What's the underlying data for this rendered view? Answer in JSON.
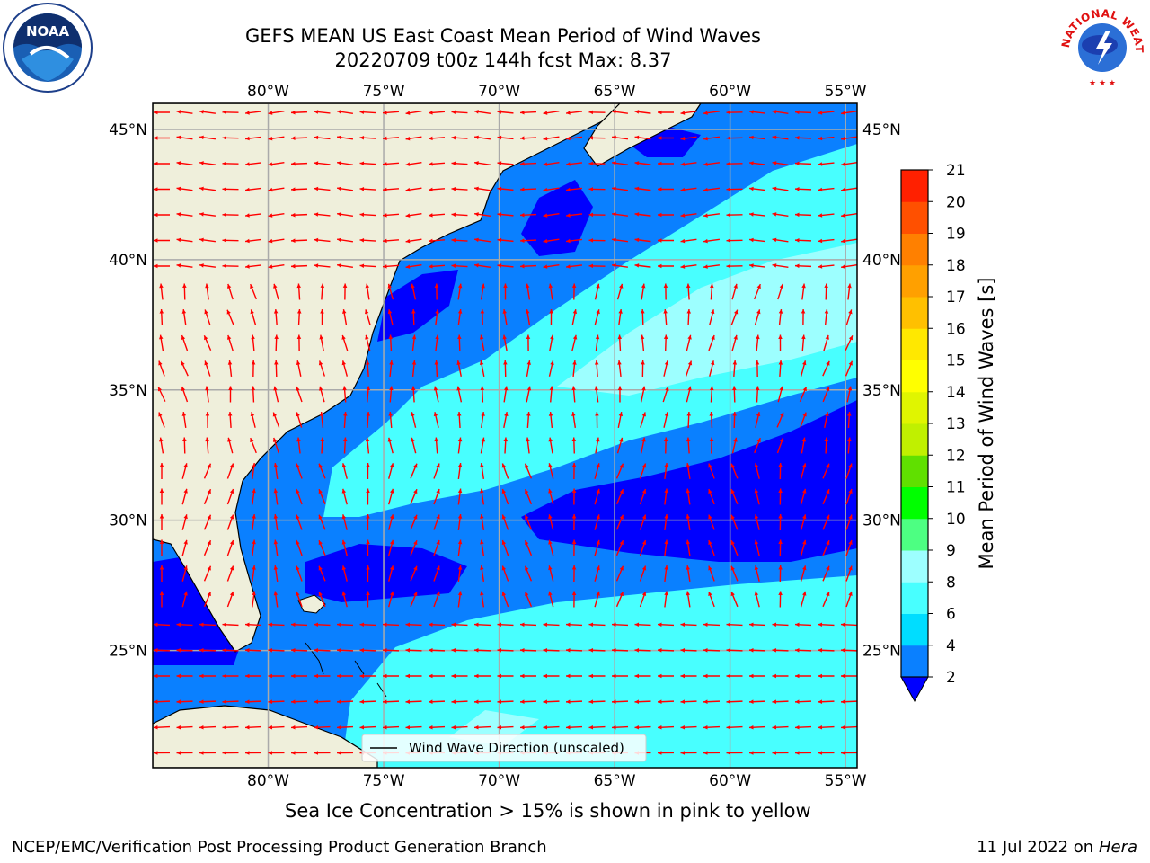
{
  "header": {
    "title_line1": "GEFS MEAN US East Coast Mean Period of Wind Waves",
    "title_line2": "20220709 t00z 144h fcst   Max: 8.37"
  },
  "logos": {
    "left": {
      "name": "noaa-logo",
      "text": "NOAA"
    },
    "right": {
      "name": "nws-logo",
      "text": "NATIONAL WEATHER SERVICE"
    }
  },
  "map": {
    "projection": "PlateCarree",
    "lon_range": [
      -85,
      -54.5
    ],
    "lat_range": [
      20.5,
      46
    ],
    "lon_ticks": [
      {
        "value": -80,
        "label": "80°W"
      },
      {
        "value": -75,
        "label": "75°W"
      },
      {
        "value": -70,
        "label": "70°W"
      },
      {
        "value": -65,
        "label": "65°W"
      },
      {
        "value": -60,
        "label": "60°W"
      },
      {
        "value": -55,
        "label": "55°W"
      }
    ],
    "lat_ticks": [
      {
        "value": 45,
        "label": "45°N"
      },
      {
        "value": 40,
        "label": "40°N"
      },
      {
        "value": 35,
        "label": "35°N"
      },
      {
        "value": 30,
        "label": "30°N"
      },
      {
        "value": 25,
        "label": "25°N"
      }
    ],
    "grid": true,
    "land_color": "#efefdb",
    "vector_color": "#ff0000",
    "legend": {
      "label": "Wind Wave Direction (unscaled)",
      "placement": "lower-center"
    }
  },
  "colorbar": {
    "label": "Mean Period of Wind Waves [s]",
    "levels": [
      2,
      4,
      6,
      8,
      9,
      10,
      11,
      12,
      13,
      14,
      15,
      16,
      17,
      18,
      19,
      20,
      21
    ],
    "tick_labels": [
      "2",
      "4",
      "6",
      "8",
      "9",
      "10",
      "11",
      "12",
      "13",
      "14",
      "15",
      "16",
      "17",
      "18",
      "19",
      "20",
      "21"
    ],
    "colors": [
      "#0a80ff",
      "#00ddff",
      "#48ffff",
      "#9dffff",
      "#4dff82",
      "#00ff00",
      "#60e000",
      "#c0f000",
      "#e0f500",
      "#ffff00",
      "#ffe800",
      "#ffc000",
      "#ffa000",
      "#ff8000",
      "#ff5000",
      "#ff2000"
    ],
    "under_color": "#0000ff",
    "extend": "min"
  },
  "note": "Sea Ice Concentration > 15% is shown in pink to yellow",
  "footer": {
    "left": "NCEP/EMC/Verification Post Processing Product Generation Branch",
    "right_prefix": "11 Jul 2022 on ",
    "right_host": "Hera"
  }
}
